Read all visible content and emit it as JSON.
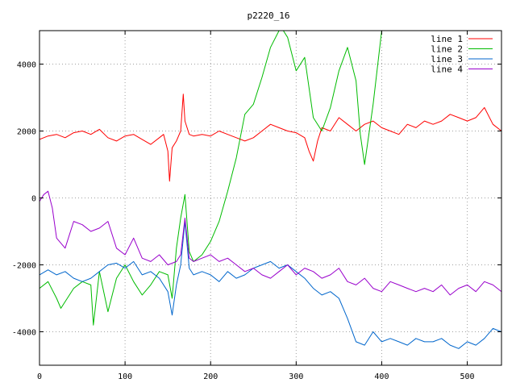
{
  "chart_data": {
    "type": "line",
    "title": "p2220_16",
    "xlabel": "",
    "ylabel": "",
    "xlim": [
      0,
      540
    ],
    "ylim": [
      -5000,
      5000
    ],
    "xticks": [
      0,
      100,
      200,
      300,
      400,
      500
    ],
    "yticks": [
      -4000,
      -2000,
      0,
      2000,
      4000
    ],
    "grid": true,
    "legend_position": "top-right",
    "series": [
      {
        "name": "line 1",
        "color": "#ff0000",
        "x": [
          0,
          10,
          20,
          30,
          40,
          50,
          60,
          70,
          80,
          90,
          100,
          110,
          120,
          130,
          140,
          145,
          150,
          152,
          155,
          160,
          165,
          168,
          170,
          175,
          180,
          190,
          200,
          210,
          220,
          230,
          240,
          250,
          260,
          270,
          280,
          290,
          300,
          310,
          315,
          320,
          325,
          330,
          340,
          350,
          360,
          370,
          380,
          390,
          400,
          410,
          420,
          430,
          440,
          450,
          460,
          470,
          480,
          490,
          500,
          510,
          520,
          530,
          540
        ],
        "y": [
          1750,
          1850,
          1900,
          1800,
          1950,
          2000,
          1900,
          2050,
          1800,
          1700,
          1850,
          1900,
          1750,
          1600,
          1800,
          1900,
          1400,
          500,
          1500,
          1700,
          2000,
          3100,
          2300,
          1900,
          1850,
          1900,
          1850,
          2000,
          1900,
          1800,
          1700,
          1800,
          2000,
          2200,
          2100,
          2000,
          1950,
          1800,
          1400,
          1100,
          1700,
          2100,
          2000,
          2400,
          2200,
          2000,
          2200,
          2300,
          2100,
          2000,
          1900,
          2200,
          2100,
          2300,
          2200,
          2300,
          2500,
          2400,
          2300,
          2400,
          2700,
          2200,
          2000
        ]
      },
      {
        "name": "line 2",
        "color": "#00bb00",
        "x": [
          0,
          10,
          20,
          25,
          30,
          40,
          50,
          60,
          63,
          70,
          80,
          90,
          100,
          110,
          120,
          130,
          140,
          150,
          155,
          160,
          165,
          170,
          175,
          180,
          190,
          200,
          210,
          220,
          230,
          240,
          250,
          260,
          270,
          280,
          285,
          290,
          300,
          310,
          320,
          330,
          340,
          350,
          360,
          370,
          375,
          380,
          390,
          400
        ],
        "y": [
          -2700,
          -2500,
          -3000,
          -3300,
          -3100,
          -2700,
          -2500,
          -2600,
          -3800,
          -2200,
          -3400,
          -2400,
          -2000,
          -2500,
          -2900,
          -2600,
          -2200,
          -2300,
          -3000,
          -1500,
          -600,
          100,
          -1600,
          -1900,
          -1700,
          -1300,
          -700,
          200,
          1200,
          2500,
          2800,
          3600,
          4500,
          5000,
          5000,
          4800,
          3800,
          4200,
          2400,
          2000,
          2700,
          3800,
          4500,
          3500,
          1900,
          1000,
          2800,
          5000
        ]
      },
      {
        "name": "line 3",
        "color": "#0066cc",
        "x": [
          0,
          10,
          20,
          30,
          40,
          50,
          60,
          70,
          80,
          90,
          100,
          110,
          120,
          130,
          140,
          150,
          155,
          160,
          165,
          170,
          175,
          180,
          190,
          200,
          210,
          220,
          230,
          240,
          250,
          260,
          270,
          280,
          290,
          300,
          310,
          320,
          330,
          340,
          350,
          360,
          370,
          380,
          390,
          400,
          410,
          420,
          430,
          440,
          450,
          460,
          470,
          480,
          490,
          500,
          510,
          520,
          530,
          540
        ],
        "y": [
          -2300,
          -2150,
          -2300,
          -2200,
          -2400,
          -2500,
          -2400,
          -2200,
          -2000,
          -1950,
          -2100,
          -1900,
          -2300,
          -2200,
          -2400,
          -2800,
          -3500,
          -2600,
          -2000,
          -700,
          -2100,
          -2300,
          -2200,
          -2300,
          -2500,
          -2200,
          -2400,
          -2300,
          -2100,
          -2000,
          -1900,
          -2100,
          -2000,
          -2200,
          -2400,
          -2700,
          -2900,
          -2800,
          -3000,
          -3600,
          -4300,
          -4400,
          -4000,
          -4300,
          -4200,
          -4300,
          -4400,
          -4200,
          -4300,
          -4300,
          -4200,
          -4400,
          -4500,
          -4300,
          -4400,
          -4200,
          -3900,
          -4000
        ]
      },
      {
        "name": "line 4",
        "color": "#9900cc",
        "x": [
          0,
          5,
          10,
          15,
          20,
          30,
          40,
          50,
          60,
          70,
          80,
          90,
          100,
          110,
          120,
          130,
          140,
          150,
          160,
          165,
          170,
          175,
          180,
          190,
          200,
          210,
          220,
          230,
          240,
          250,
          260,
          270,
          280,
          290,
          300,
          310,
          320,
          330,
          340,
          350,
          360,
          370,
          380,
          390,
          400,
          410,
          420,
          430,
          440,
          450,
          460,
          470,
          480,
          490,
          500,
          510,
          520,
          530,
          540
        ],
        "y": [
          -100,
          100,
          200,
          -300,
          -1200,
          -1500,
          -700,
          -800,
          -1000,
          -900,
          -700,
          -1500,
          -1700,
          -1200,
          -1800,
          -1900,
          -1700,
          -2000,
          -1900,
          -1700,
          -600,
          -1800,
          -1900,
          -1800,
          -1700,
          -1900,
          -1800,
          -2000,
          -2200,
          -2100,
          -2300,
          -2400,
          -2200,
          -2000,
          -2300,
          -2100,
          -2200,
          -2400,
          -2300,
          -2100,
          -2500,
          -2600,
          -2400,
          -2700,
          -2800,
          -2500,
          -2600,
          -2700,
          -2800,
          -2700,
          -2800,
          -2600,
          -2900,
          -2700,
          -2600,
          -2800,
          -2500,
          -2600,
          -2800
        ]
      }
    ]
  }
}
